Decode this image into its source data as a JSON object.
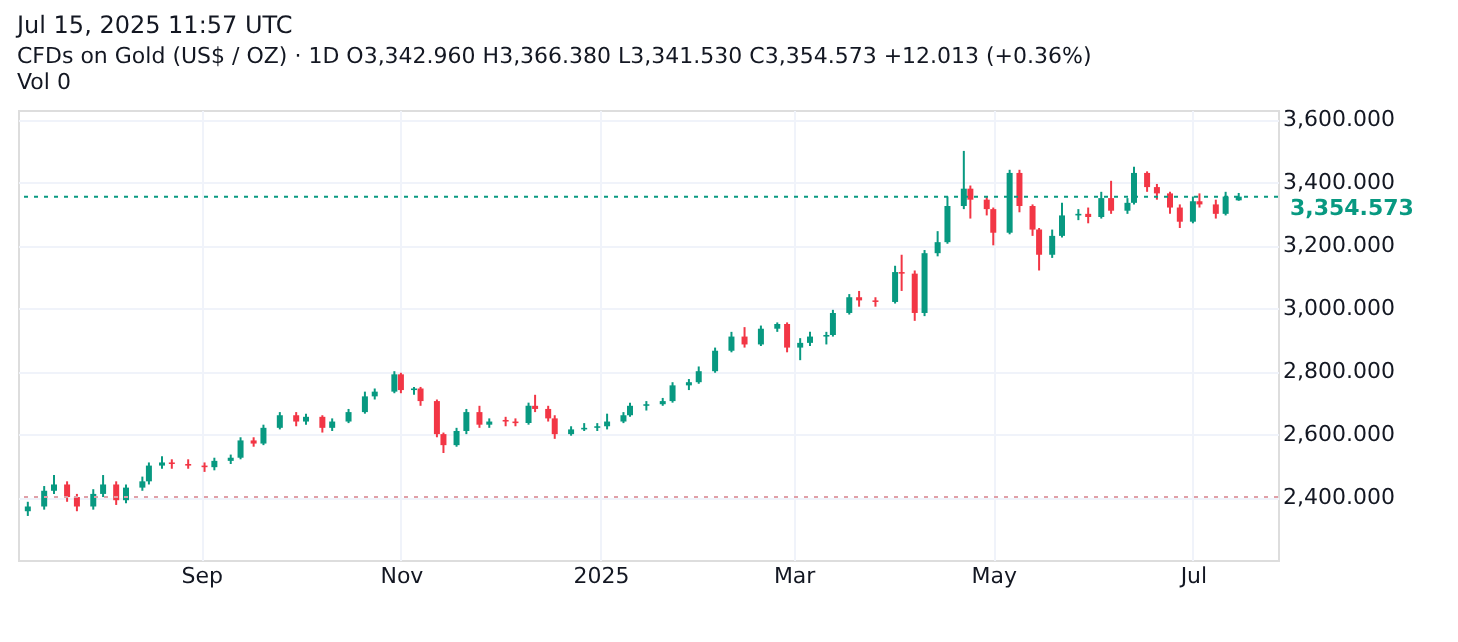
{
  "chart_data": {
    "type": "candlestick",
    "title": "CFDs on Gold (US$ / OZ) · 1D  O3,342.960 H3,366.380 L3,341.530 C3,354.573 +12.013 (+0.36%)",
    "annotations": [
      "Jul 15, 2025 11:57 UTC",
      "Vol 0"
    ],
    "x": [
      "2024-07-10",
      "2024-07-15",
      "2024-07-18",
      "2024-07-22",
      "2024-07-25",
      "2024-07-30",
      "2024-08-02",
      "2024-08-06",
      "2024-08-09",
      "2024-08-14",
      "2024-08-16",
      "2024-08-20",
      "2024-08-23",
      "2024-08-28",
      "2024-09-02",
      "2024-09-05",
      "2024-09-10",
      "2024-09-13",
      "2024-09-17",
      "2024-09-20",
      "2024-09-25",
      "2024-09-30",
      "2024-10-03",
      "2024-10-08",
      "2024-10-11",
      "2024-10-16",
      "2024-10-21",
      "2024-10-24",
      "2024-10-30",
      "2024-11-01",
      "2024-11-05",
      "2024-11-07",
      "2024-11-12",
      "2024-11-14",
      "2024-11-18",
      "2024-11-21",
      "2024-11-25",
      "2024-11-28",
      "2024-12-03",
      "2024-12-06",
      "2024-12-10",
      "2024-12-12",
      "2024-12-16",
      "2024-12-18",
      "2024-12-23",
      "2024-12-27",
      "2024-12-31",
      "2025-01-03",
      "2025-01-08",
      "2025-01-10",
      "2025-01-15",
      "2025-01-20",
      "2025-01-23",
      "2025-01-28",
      "2025-01-31",
      "2025-02-05",
      "2025-02-10",
      "2025-02-14",
      "2025-02-19",
      "2025-02-24",
      "2025-02-27",
      "2025-03-03",
      "2025-03-06",
      "2025-03-11",
      "2025-03-13",
      "2025-03-18",
      "2025-03-21",
      "2025-03-26",
      "2025-04-01",
      "2025-04-03",
      "2025-04-07",
      "2025-04-10",
      "2025-04-14",
      "2025-04-17",
      "2025-04-22",
      "2025-04-24",
      "2025-04-29",
      "2025-05-01",
      "2025-05-06",
      "2025-05-09",
      "2025-05-13",
      "2025-05-15",
      "2025-05-19",
      "2025-05-22",
      "2025-05-27",
      "2025-05-30",
      "2025-06-03",
      "2025-06-06",
      "2025-06-11",
      "2025-06-13",
      "2025-06-17",
      "2025-06-20",
      "2025-06-24",
      "2025-06-27",
      "2025-07-01",
      "2025-07-03",
      "2025-07-08",
      "2025-07-11",
      "2025-07-15"
    ],
    "ohlc": [
      [
        2355,
        2385,
        2340,
        2370
      ],
      [
        2370,
        2435,
        2360,
        2420
      ],
      [
        2420,
        2470,
        2410,
        2440
      ],
      [
        2440,
        2450,
        2385,
        2400
      ],
      [
        2400,
        2410,
        2355,
        2370
      ],
      [
        2370,
        2425,
        2360,
        2410
      ],
      [
        2410,
        2470,
        2400,
        2440
      ],
      [
        2440,
        2450,
        2375,
        2390
      ],
      [
        2390,
        2440,
        2380,
        2430
      ],
      [
        2430,
        2465,
        2420,
        2450
      ],
      [
        2450,
        2510,
        2440,
        2500
      ],
      [
        2500,
        2530,
        2490,
        2510
      ],
      [
        2510,
        2520,
        2490,
        2505
      ],
      [
        2505,
        2520,
        2490,
        2500
      ],
      [
        2500,
        2510,
        2480,
        2495
      ],
      [
        2495,
        2525,
        2485,
        2515
      ],
      [
        2515,
        2535,
        2505,
        2525
      ],
      [
        2525,
        2590,
        2520,
        2580
      ],
      [
        2580,
        2590,
        2560,
        2570
      ],
      [
        2570,
        2630,
        2565,
        2620
      ],
      [
        2620,
        2670,
        2615,
        2660
      ],
      [
        2660,
        2670,
        2625,
        2640
      ],
      [
        2640,
        2665,
        2630,
        2655
      ],
      [
        2655,
        2660,
        2605,
        2620
      ],
      [
        2620,
        2650,
        2610,
        2640
      ],
      [
        2640,
        2680,
        2635,
        2670
      ],
      [
        2670,
        2735,
        2665,
        2720
      ],
      [
        2720,
        2745,
        2710,
        2735
      ],
      [
        2735,
        2800,
        2730,
        2790
      ],
      [
        2790,
        2795,
        2730,
        2740
      ],
      [
        2740,
        2750,
        2725,
        2745
      ],
      [
        2745,
        2750,
        2690,
        2705
      ],
      [
        2705,
        2710,
        2590,
        2600
      ],
      [
        2600,
        2605,
        2540,
        2565
      ],
      [
        2565,
        2620,
        2560,
        2610
      ],
      [
        2610,
        2680,
        2600,
        2670
      ],
      [
        2670,
        2690,
        2620,
        2630
      ],
      [
        2630,
        2650,
        2620,
        2640
      ],
      [
        2645,
        2655,
        2625,
        2640
      ],
      [
        2640,
        2650,
        2625,
        2635
      ],
      [
        2635,
        2700,
        2630,
        2690
      ],
      [
        2690,
        2725,
        2670,
        2680
      ],
      [
        2680,
        2690,
        2640,
        2650
      ],
      [
        2650,
        2660,
        2585,
        2600
      ],
      [
        2600,
        2625,
        2595,
        2615
      ],
      [
        2615,
        2635,
        2610,
        2620
      ],
      [
        2620,
        2635,
        2610,
        2625
      ],
      [
        2625,
        2665,
        2615,
        2640
      ],
      [
        2640,
        2670,
        2635,
        2660
      ],
      [
        2660,
        2700,
        2655,
        2690
      ],
      [
        2690,
        2705,
        2675,
        2695
      ],
      [
        2695,
        2715,
        2690,
        2705
      ],
      [
        2705,
        2765,
        2700,
        2755
      ],
      [
        2755,
        2775,
        2740,
        2765
      ],
      [
        2765,
        2815,
        2760,
        2800
      ],
      [
        2800,
        2875,
        2795,
        2865
      ],
      [
        2865,
        2925,
        2860,
        2910
      ],
      [
        2910,
        2940,
        2875,
        2885
      ],
      [
        2885,
        2945,
        2880,
        2935
      ],
      [
        2935,
        2955,
        2925,
        2950
      ],
      [
        2950,
        2955,
        2860,
        2875
      ],
      [
        2875,
        2905,
        2835,
        2890
      ],
      [
        2890,
        2925,
        2880,
        2910
      ],
      [
        2910,
        2925,
        2885,
        2915
      ],
      [
        2915,
        2995,
        2910,
        2985
      ],
      [
        2985,
        3045,
        2980,
        3035
      ],
      [
        3035,
        3055,
        3005,
        3025
      ],
      [
        3025,
        3035,
        3005,
        3020
      ],
      [
        3020,
        3135,
        3015,
        3115
      ],
      [
        3115,
        3170,
        3055,
        3110
      ],
      [
        3110,
        3120,
        2960,
        2985
      ],
      [
        2985,
        3185,
        2975,
        3175
      ],
      [
        3175,
        3245,
        3165,
        3210
      ],
      [
        3210,
        3355,
        3205,
        3325
      ],
      [
        3325,
        3500,
        3315,
        3380
      ],
      [
        3380,
        3390,
        3285,
        3345
      ],
      [
        3345,
        3355,
        3295,
        3315
      ],
      [
        3315,
        3320,
        3200,
        3240
      ],
      [
        3240,
        3440,
        3235,
        3430
      ],
      [
        3430,
        3440,
        3305,
        3325
      ],
      [
        3325,
        3330,
        3230,
        3250
      ],
      [
        3250,
        3255,
        3120,
        3170
      ],
      [
        3170,
        3250,
        3160,
        3230
      ],
      [
        3230,
        3335,
        3225,
        3295
      ],
      [
        3295,
        3315,
        3280,
        3300
      ],
      [
        3300,
        3320,
        3270,
        3290
      ],
      [
        3290,
        3370,
        3285,
        3350
      ],
      [
        3350,
        3405,
        3300,
        3310
      ],
      [
        3310,
        3350,
        3300,
        3335
      ],
      [
        3335,
        3450,
        3330,
        3430
      ],
      [
        3430,
        3435,
        3370,
        3385
      ],
      [
        3385,
        3395,
        3345,
        3365
      ],
      [
        3365,
        3370,
        3300,
        3320
      ],
      [
        3320,
        3330,
        3255,
        3275
      ],
      [
        3275,
        3355,
        3270,
        3340
      ],
      [
        3340,
        3365,
        3320,
        3330
      ],
      [
        3330,
        3345,
        3285,
        3300
      ],
      [
        3300,
        3370,
        3295,
        3355
      ],
      [
        3342.96,
        3366.38,
        3341.53,
        3354.573
      ]
    ],
    "colors": [
      "#089981",
      "#089981",
      "#089981",
      "#f23645",
      "#f23645",
      "#089981",
      "#089981",
      "#f23645",
      "#089981",
      "#089981",
      "#089981",
      "#089981",
      "#f23645",
      "#f23645",
      "#f23645",
      "#089981",
      "#089981",
      "#089981",
      "#f23645",
      "#089981",
      "#089981",
      "#f23645",
      "#089981",
      "#f23645",
      "#089981",
      "#089981",
      "#089981",
      "#089981",
      "#089981",
      "#f23645",
      "#089981",
      "#f23645",
      "#f23645",
      "#f23645",
      "#089981",
      "#089981",
      "#f23645",
      "#089981",
      "#f23645",
      "#f23645",
      "#089981",
      "#f23645",
      "#f23645",
      "#f23645",
      "#089981",
      "#089981",
      "#089981",
      "#089981",
      "#089981",
      "#089981",
      "#089981",
      "#089981",
      "#089981",
      "#089981",
      "#089981",
      "#089981",
      "#089981",
      "#f23645",
      "#089981",
      "#089981",
      "#f23645",
      "#089981",
      "#089981",
      "#089981",
      "#089981",
      "#089981",
      "#f23645",
      "#f23645",
      "#089981",
      "#f23645",
      "#f23645",
      "#089981",
      "#089981",
      "#089981",
      "#089981",
      "#f23645",
      "#f23645",
      "#f23645",
      "#089981",
      "#f23645",
      "#f23645",
      "#f23645",
      "#089981",
      "#089981",
      "#089981",
      "#f23645",
      "#089981",
      "#f23645",
      "#089981",
      "#089981",
      "#f23645",
      "#f23645",
      "#f23645",
      "#f23645",
      "#089981",
      "#f23645",
      "#f23645",
      "#089981",
      "#089981"
    ],
    "xlim": [
      "2024-07-07",
      "2025-07-27"
    ],
    "xticks": [
      {
        "value": "2024-09-01",
        "label": "Sep"
      },
      {
        "value": "2024-11-01",
        "label": "Nov"
      },
      {
        "value": "2025-01-01",
        "label": "2025"
      },
      {
        "value": "2025-03-01",
        "label": "Mar"
      },
      {
        "value": "2025-05-01",
        "label": "May"
      },
      {
        "value": "2025-07-01",
        "label": "Jul"
      }
    ],
    "ylim": [
      2200,
      3630
    ],
    "yticks": [
      {
        "value": 2400,
        "label": "2,400.000"
      },
      {
        "value": 2600,
        "label": "2,600.000"
      },
      {
        "value": 2800,
        "label": "2,800.000"
      },
      {
        "value": 3000,
        "label": "3,000.000"
      },
      {
        "value": 3200,
        "label": "3,200.000"
      },
      {
        "value": 3400,
        "label": "3,400.000"
      },
      {
        "value": 3600,
        "label": "3,600.000"
      }
    ],
    "ref_lines": [
      {
        "axis": "y",
        "value": 3354.573,
        "label": "3,354.573",
        "color": "#089981",
        "line_style": "dotted"
      },
      {
        "axis": "y",
        "value": 2400,
        "label": null,
        "color": "#e0a0a8",
        "line_style": "dotted"
      }
    ],
    "grid": true
  }
}
